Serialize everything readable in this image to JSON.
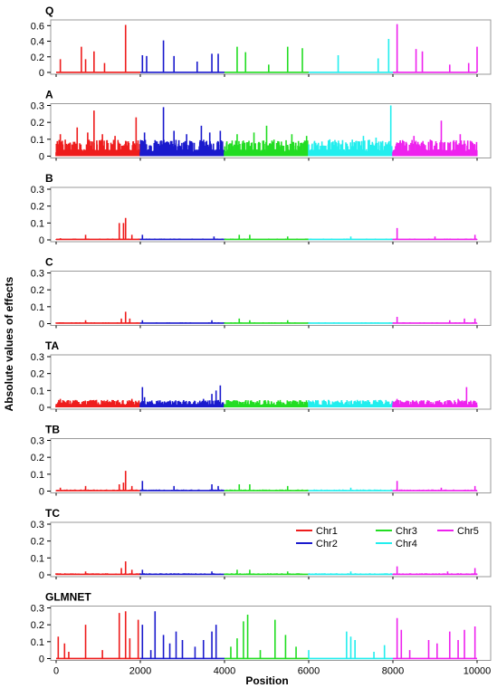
{
  "chart_data": {
    "type": "line",
    "xlabel": "Position",
    "ylabel": "Absolute values of effects",
    "xlim": [
      0,
      10000
    ],
    "xticks": [
      0,
      2000,
      4000,
      6000,
      8000,
      10000
    ],
    "xtick_labels": [
      "0",
      "2000",
      "4000",
      "6000",
      "8000",
      "10000"
    ],
    "legend": {
      "position": "inside-right of panel TC",
      "entries": [
        {
          "name": "Chr1",
          "color": "#ee1c1c"
        },
        {
          "name": "Chr2",
          "color": "#1a1acd"
        },
        {
          "name": "Chr3",
          "color": "#22dd22"
        },
        {
          "name": "Chr4",
          "color": "#22eeee"
        },
        {
          "name": "Chr5",
          "color": "#ee22ee"
        }
      ]
    },
    "chromosomes": [
      {
        "name": "Chr1",
        "start": 0,
        "end": 2000,
        "color": "#ee1c1c"
      },
      {
        "name": "Chr2",
        "start": 2000,
        "end": 4000,
        "color": "#1a1acd"
      },
      {
        "name": "Chr3",
        "start": 4000,
        "end": 6000,
        "color": "#22dd22"
      },
      {
        "name": "Chr4",
        "start": 6000,
        "end": 8000,
        "color": "#22eeee"
      },
      {
        "name": "Chr5",
        "start": 8000,
        "end": 10000,
        "color": "#ee22ee"
      }
    ],
    "panels": [
      {
        "title": "Q",
        "ylim": [
          0,
          0.65
        ],
        "yticks": [
          0,
          0.2,
          0.4,
          0.6
        ],
        "ytick_labels": [
          "0",
          "0.2",
          "0.4",
          "0.6"
        ],
        "baseline": 0.0,
        "noise": 0.0,
        "peaks": [
          [
            100,
            0.17
          ],
          [
            600,
            0.33
          ],
          [
            700,
            0.17
          ],
          [
            900,
            0.27
          ],
          [
            1150,
            0.12
          ],
          [
            1650,
            0.61
          ],
          [
            2050,
            0.22
          ],
          [
            2150,
            0.21
          ],
          [
            2550,
            0.41
          ],
          [
            2800,
            0.21
          ],
          [
            3350,
            0.14
          ],
          [
            3700,
            0.24
          ],
          [
            3850,
            0.24
          ],
          [
            4300,
            0.33
          ],
          [
            4500,
            0.26
          ],
          [
            5050,
            0.1
          ],
          [
            5500,
            0.33
          ],
          [
            5850,
            0.31
          ],
          [
            6700,
            0.22
          ],
          [
            7650,
            0.18
          ],
          [
            7900,
            0.43
          ],
          [
            8100,
            0.62
          ],
          [
            8550,
            0.3
          ],
          [
            8700,
            0.27
          ],
          [
            9350,
            0.1
          ],
          [
            9800,
            0.12
          ],
          [
            10000,
            0.33
          ]
        ]
      },
      {
        "title": "A",
        "ylim": [
          0,
          0.3
        ],
        "yticks": [
          0,
          0.1,
          0.2,
          0.3
        ],
        "ytick_labels": [
          "0",
          "0.1",
          "0.2",
          "0.3"
        ],
        "baseline": 0.02,
        "noise": 0.06,
        "peaks": [
          [
            100,
            0.13
          ],
          [
            500,
            0.17
          ],
          [
            750,
            0.14
          ],
          [
            900,
            0.27
          ],
          [
            1100,
            0.13
          ],
          [
            1400,
            0.12
          ],
          [
            1900,
            0.23
          ],
          [
            2100,
            0.14
          ],
          [
            2550,
            0.29
          ],
          [
            2800,
            0.15
          ],
          [
            3100,
            0.13
          ],
          [
            3450,
            0.18
          ],
          [
            3650,
            0.14
          ],
          [
            3900,
            0.15
          ],
          [
            4300,
            0.13
          ],
          [
            4700,
            0.14
          ],
          [
            5000,
            0.18
          ],
          [
            5600,
            0.13
          ],
          [
            5950,
            0.12
          ],
          [
            6500,
            0.1
          ],
          [
            7300,
            0.12
          ],
          [
            7600,
            0.11
          ],
          [
            7950,
            0.3
          ],
          [
            8500,
            0.12
          ],
          [
            9150,
            0.21
          ],
          [
            9600,
            0.13
          ]
        ]
      },
      {
        "title": "B",
        "ylim": [
          0,
          0.3
        ],
        "yticks": [
          0,
          0.1,
          0.2,
          0.3
        ],
        "ytick_labels": [
          "0",
          "0.1",
          "0.2",
          "0.3"
        ],
        "baseline": 0.003,
        "noise": 0.004,
        "peaks": [
          [
            100,
            0.01
          ],
          [
            700,
            0.03
          ],
          [
            1500,
            0.1
          ],
          [
            1600,
            0.1
          ],
          [
            1650,
            0.13
          ],
          [
            1800,
            0.03
          ],
          [
            2050,
            0.03
          ],
          [
            3750,
            0.02
          ],
          [
            4350,
            0.03
          ],
          [
            4600,
            0.03
          ],
          [
            5500,
            0.02
          ],
          [
            7000,
            0.02
          ],
          [
            8100,
            0.07
          ],
          [
            9000,
            0.02
          ],
          [
            9950,
            0.03
          ]
        ]
      },
      {
        "title": "C",
        "ylim": [
          0,
          0.3
        ],
        "yticks": [
          0,
          0.1,
          0.2,
          0.3
        ],
        "ytick_labels": [
          "0",
          "0.1",
          "0.2",
          "0.3"
        ],
        "baseline": 0.003,
        "noise": 0.004,
        "peaks": [
          [
            700,
            0.02
          ],
          [
            1550,
            0.03
          ],
          [
            1650,
            0.07
          ],
          [
            1750,
            0.03
          ],
          [
            2050,
            0.02
          ],
          [
            3700,
            0.02
          ],
          [
            4350,
            0.03
          ],
          [
            4600,
            0.02
          ],
          [
            5500,
            0.02
          ],
          [
            8100,
            0.04
          ],
          [
            9350,
            0.02
          ],
          [
            9700,
            0.03
          ],
          [
            9950,
            0.03
          ]
        ]
      },
      {
        "title": "TA",
        "ylim": [
          0,
          0.3
        ],
        "yticks": [
          0,
          0.1,
          0.2,
          0.3
        ],
        "ytick_labels": [
          "0",
          "0.1",
          "0.2",
          "0.3"
        ],
        "baseline": 0.012,
        "noise": 0.025,
        "peaks": [
          [
            100,
            0.05
          ],
          [
            500,
            0.04
          ],
          [
            1800,
            0.05
          ],
          [
            2050,
            0.12
          ],
          [
            2100,
            0.06
          ],
          [
            3500,
            0.05
          ],
          [
            3700,
            0.08
          ],
          [
            3800,
            0.1
          ],
          [
            3900,
            0.13
          ],
          [
            4500,
            0.04
          ],
          [
            5050,
            0.03
          ],
          [
            7300,
            0.04
          ],
          [
            8100,
            0.05
          ],
          [
            9550,
            0.05
          ],
          [
            9750,
            0.12
          ],
          [
            9850,
            0.04
          ]
        ]
      },
      {
        "title": "TB",
        "ylim": [
          0,
          0.3
        ],
        "yticks": [
          0,
          0.1,
          0.2,
          0.3
        ],
        "ytick_labels": [
          "0",
          "0.1",
          "0.2",
          "0.3"
        ],
        "baseline": 0.003,
        "noise": 0.005,
        "peaks": [
          [
            100,
            0.02
          ],
          [
            700,
            0.03
          ],
          [
            1500,
            0.04
          ],
          [
            1600,
            0.05
          ],
          [
            1650,
            0.12
          ],
          [
            1800,
            0.03
          ],
          [
            2050,
            0.06
          ],
          [
            2800,
            0.03
          ],
          [
            3700,
            0.04
          ],
          [
            3850,
            0.03
          ],
          [
            4350,
            0.04
          ],
          [
            4600,
            0.04
          ],
          [
            5500,
            0.03
          ],
          [
            7000,
            0.02
          ],
          [
            8100,
            0.06
          ],
          [
            9150,
            0.02
          ],
          [
            9950,
            0.03
          ]
        ]
      },
      {
        "title": "TC",
        "ylim": [
          0,
          0.3
        ],
        "yticks": [
          0,
          0.1,
          0.2,
          0.3
        ],
        "ytick_labels": [
          "0",
          "0.1",
          "0.2",
          "0.3"
        ],
        "baseline": 0.003,
        "noise": 0.005,
        "peaks": [
          [
            700,
            0.02
          ],
          [
            1550,
            0.04
          ],
          [
            1650,
            0.08
          ],
          [
            1800,
            0.03
          ],
          [
            2050,
            0.03
          ],
          [
            3700,
            0.02
          ],
          [
            4300,
            0.03
          ],
          [
            4600,
            0.03
          ],
          [
            5500,
            0.02
          ],
          [
            7000,
            0.02
          ],
          [
            8100,
            0.05
          ],
          [
            9300,
            0.02
          ],
          [
            9950,
            0.04
          ]
        ]
      },
      {
        "title": "GLMNET",
        "ylim": [
          0,
          0.3
        ],
        "yticks": [
          0,
          0.1,
          0.2,
          0.3
        ],
        "ytick_labels": [
          "0",
          "0.1",
          "0.2",
          "0.3"
        ],
        "baseline": 0.0,
        "noise": 0.0,
        "peaks": [
          [
            50,
            0.13
          ],
          [
            200,
            0.09
          ],
          [
            300,
            0.04
          ],
          [
            700,
            0.2
          ],
          [
            1100,
            0.05
          ],
          [
            1500,
            0.27
          ],
          [
            1650,
            0.28
          ],
          [
            1750,
            0.12
          ],
          [
            1950,
            0.23
          ],
          [
            2050,
            0.2
          ],
          [
            2250,
            0.05
          ],
          [
            2350,
            0.28
          ],
          [
            2550,
            0.14
          ],
          [
            2700,
            0.09
          ],
          [
            2850,
            0.16
          ],
          [
            3000,
            0.11
          ],
          [
            3300,
            0.07
          ],
          [
            3500,
            0.11
          ],
          [
            3700,
            0.16
          ],
          [
            3800,
            0.2
          ],
          [
            4150,
            0.07
          ],
          [
            4300,
            0.12
          ],
          [
            4450,
            0.22
          ],
          [
            4550,
            0.26
          ],
          [
            4850,
            0.05
          ],
          [
            5200,
            0.23
          ],
          [
            5450,
            0.14
          ],
          [
            5700,
            0.07
          ],
          [
            6000,
            0.05
          ],
          [
            6900,
            0.16
          ],
          [
            7000,
            0.13
          ],
          [
            7100,
            0.11
          ],
          [
            7550,
            0.04
          ],
          [
            7800,
            0.08
          ],
          [
            8100,
            0.24
          ],
          [
            8200,
            0.17
          ],
          [
            8400,
            0.05
          ],
          [
            8850,
            0.11
          ],
          [
            9050,
            0.09
          ],
          [
            9350,
            0.16
          ],
          [
            9550,
            0.11
          ],
          [
            9700,
            0.17
          ],
          [
            9950,
            0.19
          ]
        ]
      }
    ]
  }
}
